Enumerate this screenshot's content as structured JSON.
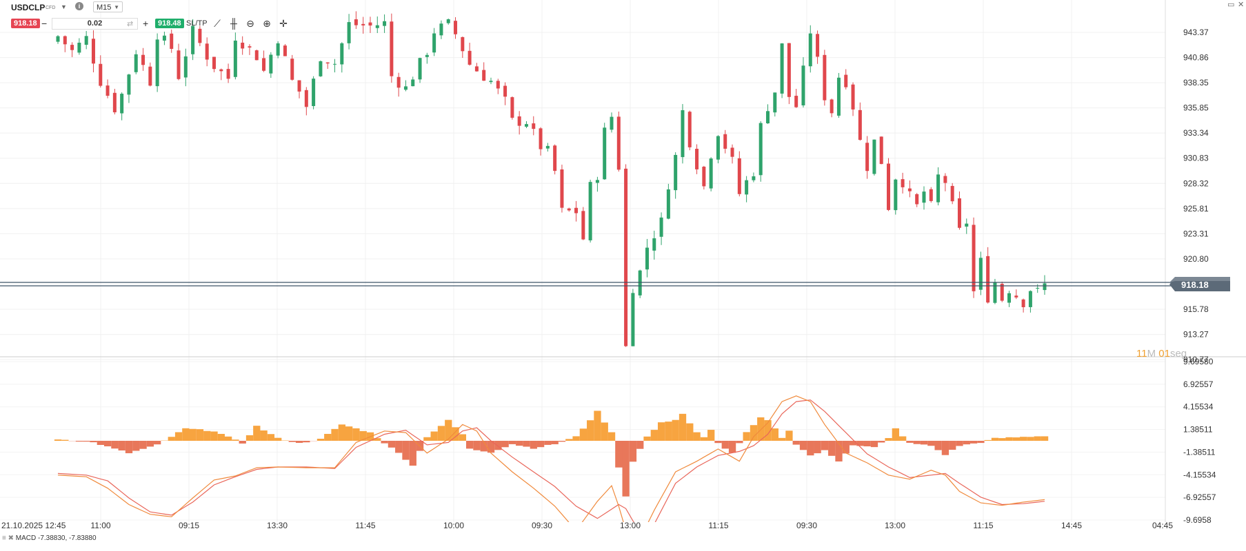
{
  "header": {
    "symbol": "USDCLP",
    "symbol_type": "CFD",
    "timeframe": "M15",
    "sell_price": "918.18",
    "buy_price": "918.48",
    "quantity": "0.02",
    "sltp_label": "SL/TP",
    "minus_label": "−",
    "plus_label": "+",
    "swap_icon": "swap-icon",
    "info_icon": "info-icon",
    "tools": [
      "line-chart-icon",
      "candles-icon",
      "zoom-out-icon",
      "zoom-in-icon",
      "crosshair-icon"
    ],
    "tool_glyphs": [
      "⟋",
      "╫",
      "⊖",
      "⊕",
      "✛"
    ]
  },
  "window_controls": {
    "minimize": "▭",
    "close": "✕"
  },
  "price_axis": {
    "labels": [
      "943.37",
      "940.86",
      "938.35",
      "935.85",
      "933.34",
      "930.83",
      "928.32",
      "925.81",
      "923.31",
      "920.80",
      "915.78",
      "913.27",
      "910.77"
    ],
    "current_price": "918.18",
    "current_price_hidden": "918.48"
  },
  "macd_axis": {
    "labels": [
      "9.69580",
      "6.92557",
      "4.15534",
      "1.38511",
      "-1.38511",
      "-4.15534",
      "-6.92557",
      "-9.6958"
    ]
  },
  "time_axis": {
    "labels": [
      "21.10.2025 12:45",
      "11:00",
      "09:15",
      "13:30",
      "11:45",
      "10:00",
      "09:30",
      "13:00",
      "11:15",
      "09:30",
      "13:00",
      "11:15",
      "14:45",
      "04:45"
    ]
  },
  "countdown": {
    "minutes": "11",
    "m_label": "M",
    "seconds": "01",
    "s_label": "seg"
  },
  "indicator": {
    "name": "MACD",
    "values": "-7.38830, -7.83880",
    "icons": "≡ ✖"
  },
  "colors": {
    "bull": "#2fa36b",
    "bear": "#e0474c",
    "hist_pos": "#f7a440",
    "hist_neg": "#e8775a",
    "macd_line": "#f08a3c",
    "signal_line": "#e9665a",
    "price_line": "#3e5468",
    "sell_bg": "#e64553",
    "buy_bg": "#1fae6b",
    "countdown": "#f0a030"
  },
  "chart_data": {
    "type": "candlestick",
    "price_range": [
      910.77,
      944.5
    ],
    "current_price": 918.18,
    "close_path": [
      [
        0,
        943.0
      ],
      [
        2,
        941.5
      ],
      [
        4,
        942.8
      ],
      [
        6,
        938.5
      ],
      [
        8,
        935.8
      ],
      [
        9,
        937.2
      ],
      [
        11,
        941.5
      ],
      [
        13,
        938.5
      ],
      [
        14,
        943.2
      ],
      [
        16,
        941.8
      ],
      [
        17,
        939.0
      ],
      [
        19,
        943.5
      ],
      [
        21,
        941.0
      ],
      [
        22,
        940.0
      ],
      [
        24,
        938.8
      ],
      [
        25,
        943.0
      ],
      [
        28,
        941.0
      ],
      [
        29,
        939.5
      ],
      [
        31,
        942.8
      ],
      [
        33,
        938.5
      ],
      [
        34,
        937.5
      ],
      [
        35,
        936.0
      ],
      [
        37,
        941.0
      ],
      [
        39,
        940.3
      ],
      [
        41,
        944.2
      ],
      [
        44,
        944.0
      ],
      [
        46,
        944.3
      ],
      [
        47,
        939.0
      ],
      [
        49,
        937.8
      ],
      [
        52,
        941.5
      ],
      [
        53,
        943.5
      ],
      [
        55,
        944.2
      ],
      [
        56,
        943.2
      ],
      [
        58,
        940.2
      ],
      [
        60,
        939.0
      ],
      [
        61,
        938.5
      ],
      [
        63,
        936.5
      ],
      [
        64,
        934.5
      ],
      [
        66,
        934.5
      ],
      [
        68,
        932.0
      ],
      [
        69,
        931.5
      ],
      [
        70,
        929.5
      ],
      [
        71,
        925.5
      ],
      [
        73,
        925.5
      ],
      [
        74,
        922.8
      ],
      [
        75,
        928.0
      ],
      [
        76,
        929.2
      ],
      [
        77,
        933.5
      ],
      [
        78,
        935.0
      ],
      [
        79,
        930.0
      ],
      [
        80,
        912.0
      ],
      [
        81,
        918.0
      ],
      [
        82,
        919.5
      ],
      [
        83,
        922.0
      ],
      [
        85,
        924.5
      ],
      [
        86,
        928.3
      ],
      [
        87,
        931.0
      ],
      [
        88,
        935.5
      ],
      [
        89,
        932.5
      ],
      [
        91,
        928.0
      ],
      [
        92,
        931.3
      ],
      [
        93,
        933.5
      ],
      [
        95,
        930.5
      ],
      [
        96,
        927.3
      ],
      [
        97,
        928.5
      ],
      [
        98,
        929.5
      ],
      [
        99,
        934.0
      ],
      [
        100,
        936.0
      ],
      [
        101,
        937.5
      ],
      [
        102,
        942.0
      ],
      [
        103,
        937.0
      ],
      [
        104,
        936.0
      ],
      [
        105,
        939.5
      ],
      [
        106,
        943.5
      ],
      [
        107,
        940.5
      ],
      [
        108,
        937.0
      ],
      [
        109,
        935.5
      ],
      [
        110,
        939.0
      ],
      [
        111,
        938.5
      ],
      [
        112,
        936.0
      ],
      [
        113,
        932.5
      ],
      [
        114,
        930.0
      ],
      [
        115,
        932.5
      ],
      [
        116,
        930.5
      ],
      [
        117,
        926.0
      ],
      [
        118,
        929.0
      ],
      [
        119,
        928.5
      ],
      [
        120,
        927.0
      ],
      [
        121,
        926.0
      ],
      [
        122,
        927.5
      ],
      [
        123,
        926.0
      ],
      [
        124,
        929.0
      ],
      [
        125,
        928.5
      ],
      [
        126,
        926.0
      ],
      [
        127,
        923.5
      ],
      [
        128,
        924.5
      ],
      [
        129,
        917.5
      ],
      [
        130,
        920.5
      ],
      [
        131,
        917.0
      ],
      [
        132,
        918.5
      ],
      [
        133,
        916.8
      ],
      [
        134,
        917.8
      ],
      [
        136,
        916.5
      ],
      [
        137,
        917.8
      ],
      [
        138,
        917.5
      ],
      [
        139,
        918.2
      ]
    ],
    "macd": {
      "range": [
        -9.6958,
        9.6958
      ],
      "histogram": [
        [
          0,
          0.2
        ],
        [
          5,
          -0.2
        ],
        [
          10,
          -1.5
        ],
        [
          14,
          -0.5
        ],
        [
          18,
          1.5
        ],
        [
          22,
          1.2
        ],
        [
          26,
          -0.3
        ],
        [
          28,
          1.8
        ],
        [
          31,
          0.3
        ],
        [
          34,
          -0.3
        ],
        [
          37,
          0.2
        ],
        [
          40,
          2.0
        ],
        [
          44,
          1.0
        ],
        [
          48,
          -1.5
        ],
        [
          50,
          -3.0
        ],
        [
          52,
          0.5
        ],
        [
          55,
          2.5
        ],
        [
          57,
          0.8
        ],
        [
          58,
          -1.0
        ],
        [
          61,
          -1.4
        ],
        [
          64,
          -0.4
        ],
        [
          67,
          -0.9
        ],
        [
          70,
          -0.4
        ],
        [
          73,
          0.5
        ],
        [
          76,
          3.6
        ],
        [
          78,
          1.0
        ],
        [
          79,
          -3.2
        ],
        [
          80,
          -6.8
        ],
        [
          81,
          -2.5
        ],
        [
          83,
          0.5
        ],
        [
          85,
          2.2
        ],
        [
          87,
          2.6
        ],
        [
          88,
          3.3
        ],
        [
          90,
          1.0
        ],
        [
          91,
          0.4
        ],
        [
          92,
          1.3
        ],
        [
          93,
          -0.3
        ],
        [
          95,
          -1.5
        ],
        [
          97,
          1.0
        ],
        [
          99,
          2.8
        ],
        [
          100,
          2.5
        ],
        [
          102,
          0.4
        ],
        [
          103,
          1.2
        ],
        [
          104,
          -0.4
        ],
        [
          106,
          -1.8
        ],
        [
          108,
          -1.2
        ],
        [
          110,
          -2.5
        ],
        [
          112,
          -0.5
        ],
        [
          115,
          -0.8
        ],
        [
          117,
          0.3
        ],
        [
          118,
          1.5
        ],
        [
          120,
          -0.3
        ],
        [
          123,
          -0.6
        ],
        [
          125,
          -1.7
        ],
        [
          127,
          -0.6
        ],
        [
          130,
          -0.2
        ],
        [
          132,
          0.3
        ],
        [
          139,
          0.6
        ]
      ],
      "macd_line": [
        [
          0,
          -4.2
        ],
        [
          4,
          -4.4
        ],
        [
          7,
          -5.8
        ],
        [
          10,
          -7.8
        ],
        [
          13,
          -9.0
        ],
        [
          16,
          -9.3
        ],
        [
          19,
          -7.0
        ],
        [
          22,
          -4.8
        ],
        [
          25,
          -4.3
        ],
        [
          28,
          -3.3
        ],
        [
          31,
          -3.2
        ],
        [
          35,
          -3.3
        ],
        [
          39,
          -3.3
        ],
        [
          42,
          -0.2
        ],
        [
          46,
          1.2
        ],
        [
          49,
          1.0
        ],
        [
          52,
          -1.5
        ],
        [
          55,
          0.2
        ],
        [
          57,
          2.0
        ],
        [
          59,
          1.2
        ],
        [
          61,
          -1.5
        ],
        [
          64,
          -3.8
        ],
        [
          67,
          -5.8
        ],
        [
          70,
          -8.0
        ],
        [
          73,
          -11.0
        ],
        [
          76,
          -7.4
        ],
        [
          78,
          -5.5
        ],
        [
          79,
          -8.0
        ],
        [
          80,
          -11.5
        ],
        [
          82,
          -12.0
        ],
        [
          84,
          -8.5
        ],
        [
          87,
          -3.8
        ],
        [
          90,
          -2.5
        ],
        [
          93,
          -1.0
        ],
        [
          96,
          -2.5
        ],
        [
          98,
          0.5
        ],
        [
          100,
          2.2
        ],
        [
          102,
          4.8
        ],
        [
          104,
          5.5
        ],
        [
          106,
          4.8
        ],
        [
          108,
          2.0
        ],
        [
          111,
          -1.5
        ],
        [
          114,
          -2.7
        ],
        [
          117,
          -4.2
        ],
        [
          120,
          -4.7
        ],
        [
          123,
          -3.6
        ],
        [
          125,
          -4.2
        ],
        [
          127,
          -6.2
        ],
        [
          130,
          -7.6
        ],
        [
          133,
          -7.9
        ],
        [
          136,
          -7.5
        ],
        [
          139,
          -7.2
        ]
      ],
      "signal_line": [
        [
          0,
          -4.0
        ],
        [
          4,
          -4.2
        ],
        [
          7,
          -4.9
        ],
        [
          10,
          -7.0
        ],
        [
          13,
          -8.7
        ],
        [
          16,
          -9.1
        ],
        [
          19,
          -7.5
        ],
        [
          22,
          -5.4
        ],
        [
          25,
          -4.4
        ],
        [
          28,
          -3.5
        ],
        [
          31,
          -3.2
        ],
        [
          35,
          -3.2
        ],
        [
          39,
          -3.4
        ],
        [
          42,
          -0.8
        ],
        [
          46,
          0.8
        ],
        [
          49,
          1.3
        ],
        [
          52,
          -0.5
        ],
        [
          55,
          -0.2
        ],
        [
          57,
          1.2
        ],
        [
          59,
          1.6
        ],
        [
          61,
          0.0
        ],
        [
          64,
          -2.0
        ],
        [
          67,
          -3.8
        ],
        [
          70,
          -5.6
        ],
        [
          73,
          -8.0
        ],
        [
          76,
          -9.5
        ],
        [
          79,
          -7.8
        ],
        [
          80,
          -8.3
        ],
        [
          82,
          -11.3
        ],
        [
          84,
          -10.2
        ],
        [
          87,
          -5.2
        ],
        [
          90,
          -3.2
        ],
        [
          93,
          -1.8
        ],
        [
          96,
          -1.3
        ],
        [
          98,
          -0.6
        ],
        [
          100,
          0.8
        ],
        [
          102,
          3.3
        ],
        [
          104,
          4.8
        ],
        [
          106,
          5.0
        ],
        [
          108,
          3.6
        ],
        [
          111,
          1.0
        ],
        [
          114,
          -1.6
        ],
        [
          117,
          -3.2
        ],
        [
          120,
          -4.5
        ],
        [
          123,
          -4.2
        ],
        [
          125,
          -4.0
        ],
        [
          127,
          -5.2
        ],
        [
          130,
          -6.9
        ],
        [
          133,
          -7.8
        ],
        [
          136,
          -7.7
        ],
        [
          139,
          -7.4
        ]
      ]
    }
  }
}
